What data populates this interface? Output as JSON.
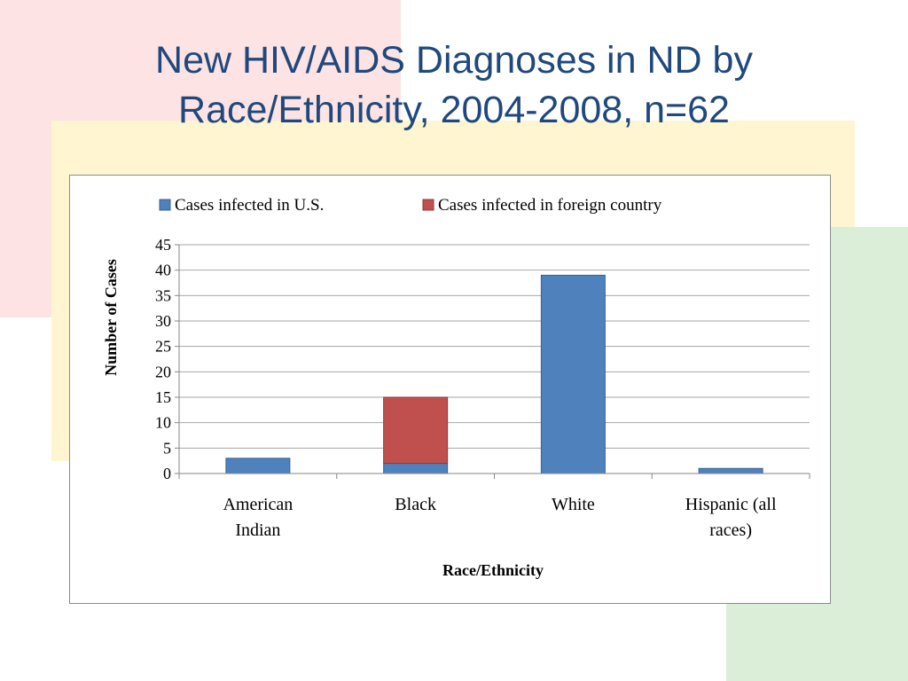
{
  "title": {
    "line1": "New HIV/AIDS Diagnoses in ND by",
    "line2": "Race/Ethnicity, 2004-2008, n=62"
  },
  "colors": {
    "us": "#4f81bd",
    "foreign": "#c0504d",
    "title": "#1f497d",
    "bg_pink": "#fde3e4",
    "bg_yellow": "#fff5d0",
    "bg_green": "#daeed8"
  },
  "chart_data": {
    "type": "bar",
    "stacked": true,
    "categories": [
      [
        "American",
        "Indian"
      ],
      [
        "Black"
      ],
      [
        "White"
      ],
      [
        "Hispanic (all",
        "races)"
      ]
    ],
    "series": [
      {
        "name": "Cases infected in U.S.",
        "color": "#4f81bd",
        "values": [
          3,
          2,
          39,
          1
        ]
      },
      {
        "name": "Cases infected in foreign country",
        "color": "#c0504d",
        "values": [
          0,
          13,
          0,
          0
        ]
      }
    ],
    "xlabel": "Race/Ethnicity",
    "ylabel": "Number of Cases",
    "ylim": [
      0,
      45
    ],
    "yticks": [
      0,
      5,
      10,
      15,
      20,
      25,
      30,
      35,
      40,
      45
    ],
    "grid": true,
    "legend": "top"
  }
}
